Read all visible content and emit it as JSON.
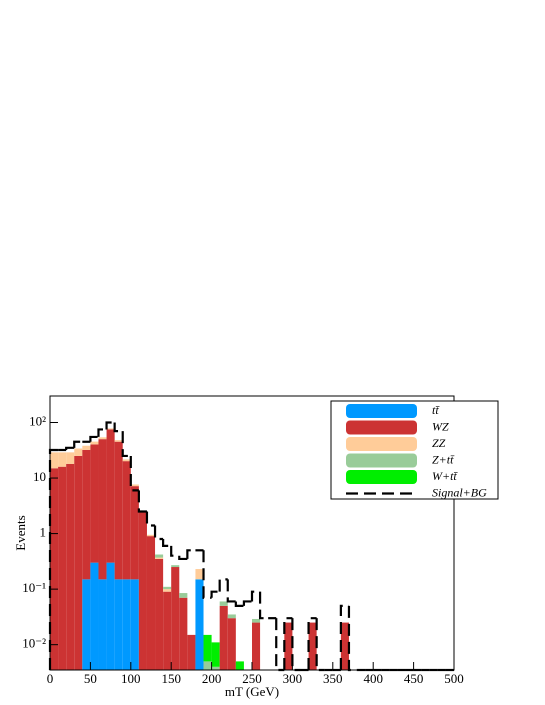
{
  "chart_data": {
    "type": "stacked-histogram",
    "xlabel": "mT (GeV)",
    "ylabel": "Events",
    "bins": [
      0,
      10,
      20,
      30,
      40,
      50,
      60,
      70,
      80,
      90,
      100,
      110,
      120,
      130,
      140,
      150,
      160,
      170,
      180,
      190,
      200,
      210,
      220,
      230,
      240,
      250,
      260,
      270,
      280,
      290,
      300,
      310,
      320,
      330,
      340,
      350,
      360,
      370,
      380,
      390,
      400,
      410,
      420,
      430,
      440,
      450,
      460,
      470,
      480,
      490,
      500
    ],
    "xlim": [
      0,
      500
    ],
    "xticks": [
      0,
      50,
      100,
      150,
      200,
      250,
      300,
      350,
      400,
      450,
      500
    ],
    "ylim": [
      0.0035,
      300
    ],
    "log_y": true,
    "yticks": [
      {
        "value": 0.01,
        "label": "10⁻²"
      },
      {
        "value": 0.1,
        "label": "10⁻¹"
      },
      1,
      10,
      {
        "value": 100,
        "label": "10²"
      }
    ],
    "legend": "upper right",
    "series": [
      {
        "name": "tt̄",
        "color": "#0099ff",
        "values": [
          0,
          0,
          0,
          0,
          0.15,
          0.3,
          0.15,
          0.3,
          0.15,
          0.15,
          0.15,
          0,
          0,
          0,
          0,
          0,
          0,
          0,
          0.15,
          0,
          0,
          0,
          0,
          0,
          0,
          0,
          0,
          0,
          0,
          0,
          0,
          0,
          0,
          0,
          0,
          0,
          0,
          0,
          0,
          0,
          0,
          0,
          0,
          0,
          0,
          0,
          0,
          0,
          0,
          0
        ]
      },
      {
        "name": "WZ",
        "color": "#cc3333",
        "values": [
          15,
          16,
          18,
          25,
          32,
          40,
          50,
          75,
          45,
          20,
          7,
          2.4,
          0.9,
          0.35,
          0.09,
          0.25,
          0.07,
          0.015,
          0,
          0,
          0,
          0.05,
          0.03,
          0,
          0,
          0.025,
          0,
          0,
          0,
          0.025,
          0,
          0,
          0.025,
          0,
          0,
          0,
          0.025,
          0,
          0,
          0,
          0,
          0,
          0,
          0,
          0,
          0,
          0,
          0,
          0,
          0
        ]
      },
      {
        "name": "ZZ",
        "color": "#ffcc99",
        "values": [
          14,
          13,
          11,
          9,
          6,
          5,
          4,
          3,
          3,
          1.5,
          0.5,
          0.15,
          0.05,
          0.02,
          0.01,
          0,
          0,
          0,
          0.08,
          0,
          0,
          0,
          0,
          0,
          0,
          0,
          0,
          0,
          0,
          0,
          0,
          0,
          0,
          0,
          0,
          0,
          0,
          0,
          0,
          0,
          0,
          0,
          0,
          0,
          0,
          0,
          0,
          0,
          0,
          0
        ]
      },
      {
        "name": "Z+tt̄",
        "color": "#99cc99",
        "values": [
          0,
          0,
          0,
          0,
          0,
          0,
          0,
          0,
          0,
          0,
          0,
          0,
          0,
          0.05,
          0.01,
          0.02,
          0.015,
          0,
          0,
          0.005,
          0.004,
          0.01,
          0.005,
          0,
          0,
          0.004,
          0,
          0,
          0,
          0,
          0,
          0,
          0,
          0,
          0,
          0,
          0,
          0,
          0,
          0,
          0,
          0,
          0,
          0,
          0,
          0,
          0,
          0,
          0,
          0
        ]
      },
      {
        "name": "W+tt̄",
        "color": "#00ee00",
        "values": [
          0,
          0,
          0,
          0,
          0,
          0,
          0,
          0,
          0,
          0,
          0,
          0,
          0,
          0,
          0,
          0,
          0,
          0,
          0,
          0.01,
          0.007,
          0,
          0,
          0.005,
          0,
          0,
          0,
          0,
          0,
          0,
          0,
          0,
          0,
          0,
          0,
          0,
          0,
          0,
          0,
          0,
          0,
          0,
          0,
          0,
          0,
          0,
          0,
          0,
          0,
          0
        ]
      },
      {
        "name": "Signal+BG",
        "color": "#000000",
        "style": "dashed",
        "values": [
          32,
          32,
          35,
          45,
          45,
          55,
          75,
          100,
          70,
          25,
          6,
          2.5,
          1.4,
          0.8,
          0.6,
          0.4,
          0.35,
          0.5,
          0.5,
          0.07,
          0.09,
          0.15,
          0.06,
          0.05,
          0.06,
          0.09,
          0.03,
          0.03,
          0,
          0.03,
          0,
          0,
          0.03,
          0,
          0,
          0,
          0.05,
          0,
          0,
          0,
          0,
          0,
          0,
          0,
          0,
          0,
          0,
          0,
          0,
          0
        ]
      }
    ]
  }
}
